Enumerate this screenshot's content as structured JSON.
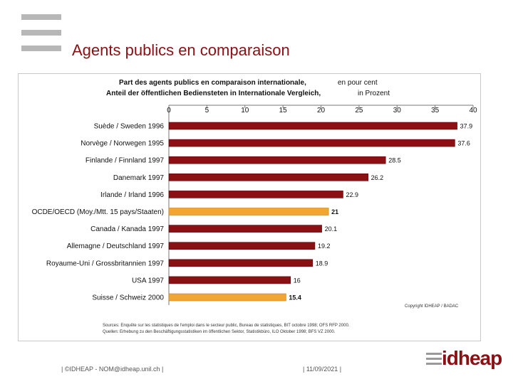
{
  "slide": {
    "title": "Agents publics en comparaison",
    "footer_left": "| ©IDHEAP - NOM@idheap.unil.ch |",
    "footer_right": "| 11/09/2021 |",
    "brand": "idheap"
  },
  "colors": {
    "brand": "#8b1014",
    "bar_standard": "#8b1014",
    "bar_highlight": "#f2a531"
  },
  "chart_data": {
    "type": "bar",
    "orientation": "horizontal",
    "title_fr": "Part des agents publics en comparaison internationale,",
    "title_fr_suffix": "en pour cent",
    "title_de": "Anteil der öffentlichen Bediensteten in Internationale Vergleich,",
    "title_de_suffix": "in Prozent",
    "xlim": [
      0,
      40
    ],
    "xticks": [
      0,
      5,
      10,
      15,
      20,
      25,
      30,
      35,
      40
    ],
    "categories": [
      "Suède / Sweden 1996",
      "Norvège / Norwegen 1995",
      "Finlande / Finnland 1997",
      "Danemark 1997",
      "Irlande / Irland 1996",
      "OCDE/OECD (Moy./Mtt. 15 pays/Staaten)",
      "Canada / Kanada 1997",
      "Allemagne / Deutschland 1997",
      "Royaume-Uni / Grossbritannien 1997",
      "USA 1997",
      "Suisse / Schweiz 2000"
    ],
    "values": [
      37.9,
      37.6,
      28.5,
      26.2,
      22.9,
      21,
      20.1,
      19.2,
      18.9,
      16,
      15.4
    ],
    "value_labels": [
      "37.9",
      "37.6",
      "28.5",
      "26.2",
      "22.9",
      "21",
      "20.1",
      "19.2",
      "18.9",
      "16",
      "15.4"
    ],
    "highlight": [
      false,
      false,
      false,
      false,
      false,
      true,
      false,
      false,
      false,
      false,
      true
    ],
    "copyright": "Copyright IDHEAP / BADAC",
    "sources_fr": "Sources: Enquête sur les statistiques de l'emploi dans le secteur public, Bureau de statistiques, BIT octobre 1998; OFS RFP 2000.",
    "sources_de": "Quellen: Erhebung zu den Beschäftigungsstatistiken im öffentlichen Sektor, Statistikbüro, ILO Oktober 1998; BFS VZ 2000."
  }
}
